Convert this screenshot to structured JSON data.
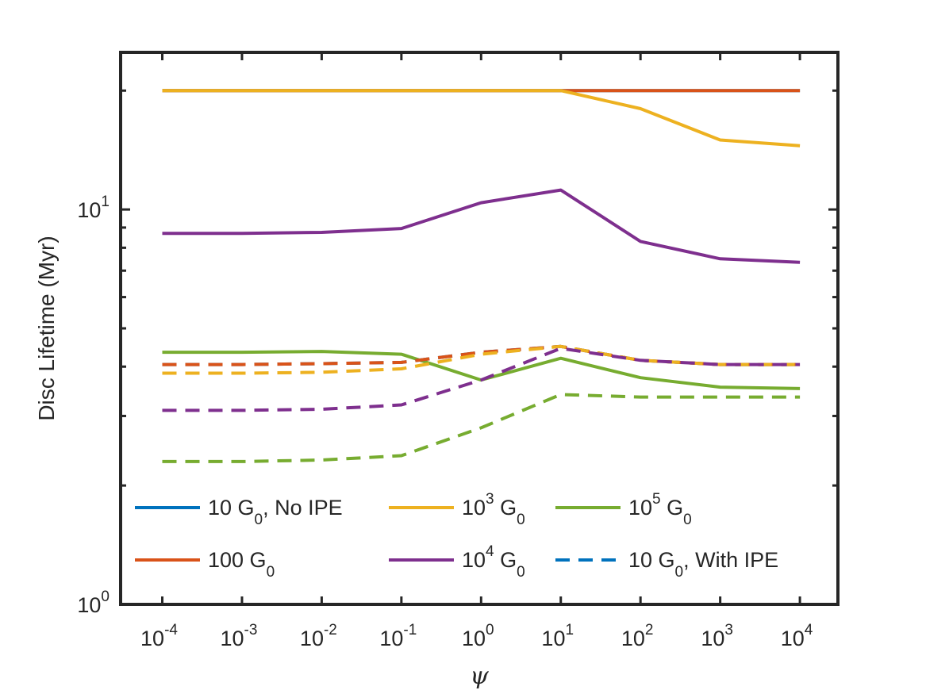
{
  "chart_data": {
    "type": "line",
    "title": "",
    "xlabel": "ψ",
    "ylabel": "Disc Lifetime (Myr)",
    "xscale": "log",
    "yscale": "log",
    "xlim": [
      3e-05,
      30000
    ],
    "ylim": [
      1,
      25
    ],
    "x_ticks": [
      {
        "base": "10",
        "exp": "-4",
        "value": 0.0001
      },
      {
        "base": "10",
        "exp": "-3",
        "value": 0.001
      },
      {
        "base": "10",
        "exp": "-2",
        "value": 0.01
      },
      {
        "base": "10",
        "exp": "-1",
        "value": 0.1
      },
      {
        "base": "10",
        "exp": "0",
        "value": 1
      },
      {
        "base": "10",
        "exp": "1",
        "value": 10
      },
      {
        "base": "10",
        "exp": "2",
        "value": 100
      },
      {
        "base": "10",
        "exp": "3",
        "value": 1000
      },
      {
        "base": "10",
        "exp": "4",
        "value": 10000
      }
    ],
    "y_ticks": [
      {
        "base": "10",
        "exp": "0",
        "value": 1
      },
      {
        "base": "10",
        "exp": "1",
        "value": 10
      }
    ],
    "x": [
      0.0001,
      0.001,
      0.01,
      0.1,
      1,
      10,
      100,
      1000,
      10000
    ],
    "series": [
      {
        "name": "10 G0, No IPE",
        "color": "#0072BD",
        "dash": "solid",
        "values": [
          20,
          20,
          20,
          20,
          20,
          20,
          20,
          20,
          20
        ]
      },
      {
        "name": "100 G0",
        "color": "#D95319",
        "dash": "solid",
        "values": [
          20,
          20,
          20,
          20,
          20,
          20,
          20,
          20,
          20
        ]
      },
      {
        "name": "10^3 G0",
        "color": "#EDB120",
        "dash": "solid",
        "values": [
          20,
          20,
          20,
          20,
          20,
          20,
          18,
          15,
          14.5
        ]
      },
      {
        "name": "10^4 G0",
        "color": "#7E2F8E",
        "dash": "solid",
        "values": [
          8.7,
          8.7,
          8.75,
          8.95,
          10.4,
          11.2,
          8.3,
          7.5,
          7.35
        ]
      },
      {
        "name": "10^5 G0",
        "color": "#77AC30",
        "dash": "solid",
        "values": [
          4.35,
          4.35,
          4.37,
          4.3,
          3.7,
          4.2,
          3.75,
          3.55,
          3.52
        ]
      },
      {
        "name": "10 G0, With IPE",
        "color": "#0072BD",
        "dash": "dashed",
        "values": [
          4.05,
          4.05,
          4.07,
          4.1,
          4.35,
          4.5,
          4.15,
          4.05,
          4.05
        ]
      },
      {
        "name": "100 G0, With IPE",
        "color": "#D95319",
        "dash": "dashed",
        "values": [
          4.05,
          4.05,
          4.07,
          4.1,
          4.35,
          4.5,
          4.15,
          4.05,
          4.05
        ]
      },
      {
        "name": "10^3 G0, With IPE",
        "color": "#EDB120",
        "dash": "dashed",
        "values": [
          3.85,
          3.85,
          3.87,
          3.95,
          4.3,
          4.5,
          4.15,
          4.05,
          4.05
        ]
      },
      {
        "name": "10^4 G0, With IPE",
        "color": "#7E2F8E",
        "dash": "dashed",
        "values": [
          3.1,
          3.1,
          3.12,
          3.2,
          3.7,
          4.45,
          4.15,
          4.05,
          4.05
        ]
      },
      {
        "name": "10^5 G0, With IPE",
        "color": "#77AC30",
        "dash": "dashed",
        "values": [
          2.3,
          2.3,
          2.32,
          2.38,
          2.8,
          3.4,
          3.35,
          3.35,
          3.35
        ]
      }
    ],
    "legend": {
      "placement": "bottom-left",
      "entries": [
        {
          "key": "no-ipe",
          "parts": [
            "10 G",
            "0",
            ", No IPE"
          ],
          "sup": "",
          "color": "#0072BD",
          "dash": "solid"
        },
        {
          "key": "1e3",
          "parts": [
            " G",
            "0",
            ""
          ],
          "sup": "3",
          "color": "#EDB120",
          "dash": "solid"
        },
        {
          "key": "1e5",
          "parts": [
            " G",
            "0",
            ""
          ],
          "sup": "5",
          "color": "#77AC30",
          "dash": "solid"
        },
        {
          "key": "100",
          "parts": [
            "100 G",
            "0",
            ""
          ],
          "sup": "",
          "color": "#D95319",
          "dash": "solid"
        },
        {
          "key": "1e4",
          "parts": [
            " G",
            "0",
            ""
          ],
          "sup": "4",
          "color": "#7E2F8E",
          "dash": "solid"
        },
        {
          "key": "with-ipe",
          "parts": [
            "10 G",
            "0",
            ", With IPE"
          ],
          "sup": "",
          "color": "#0072BD",
          "dash": "dashed"
        }
      ]
    },
    "axis_color": "#262626",
    "grid": false
  }
}
